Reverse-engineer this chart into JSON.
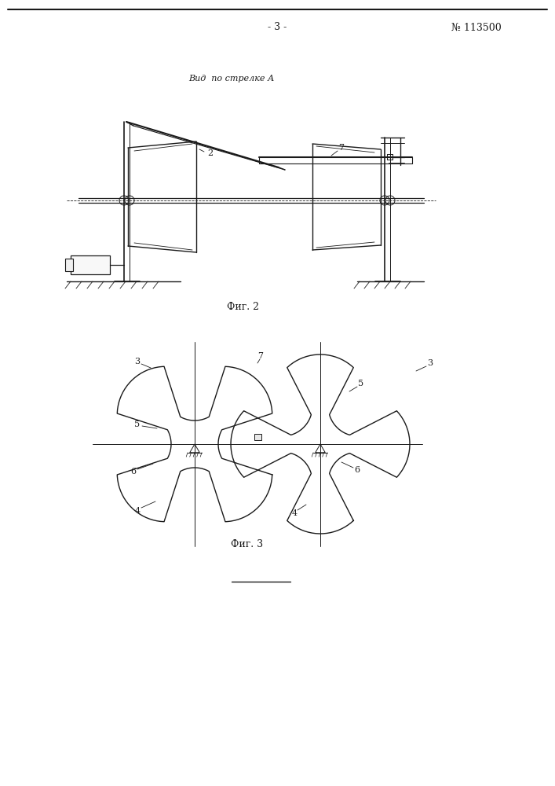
{
  "bg_color": "#ffffff",
  "line_color": "#1a1a1a",
  "page_width": 7.07,
  "page_height": 10.0,
  "header_text": "- 3 -",
  "patent_text": "№ 113500",
  "fig2_label": "Фиг. 2",
  "fig3_label": "Фиг. 3",
  "view_label": "Вид  по стрелке А",
  "label_2": "2",
  "label_7_fig2": "7",
  "label_3a": "3",
  "label_3b": "3",
  "label_4a": "4",
  "label_4b": "4",
  "label_5a": "5",
  "label_5b": "5",
  "label_6a": "6",
  "label_6b": "6",
  "label_7_fig3": "7"
}
